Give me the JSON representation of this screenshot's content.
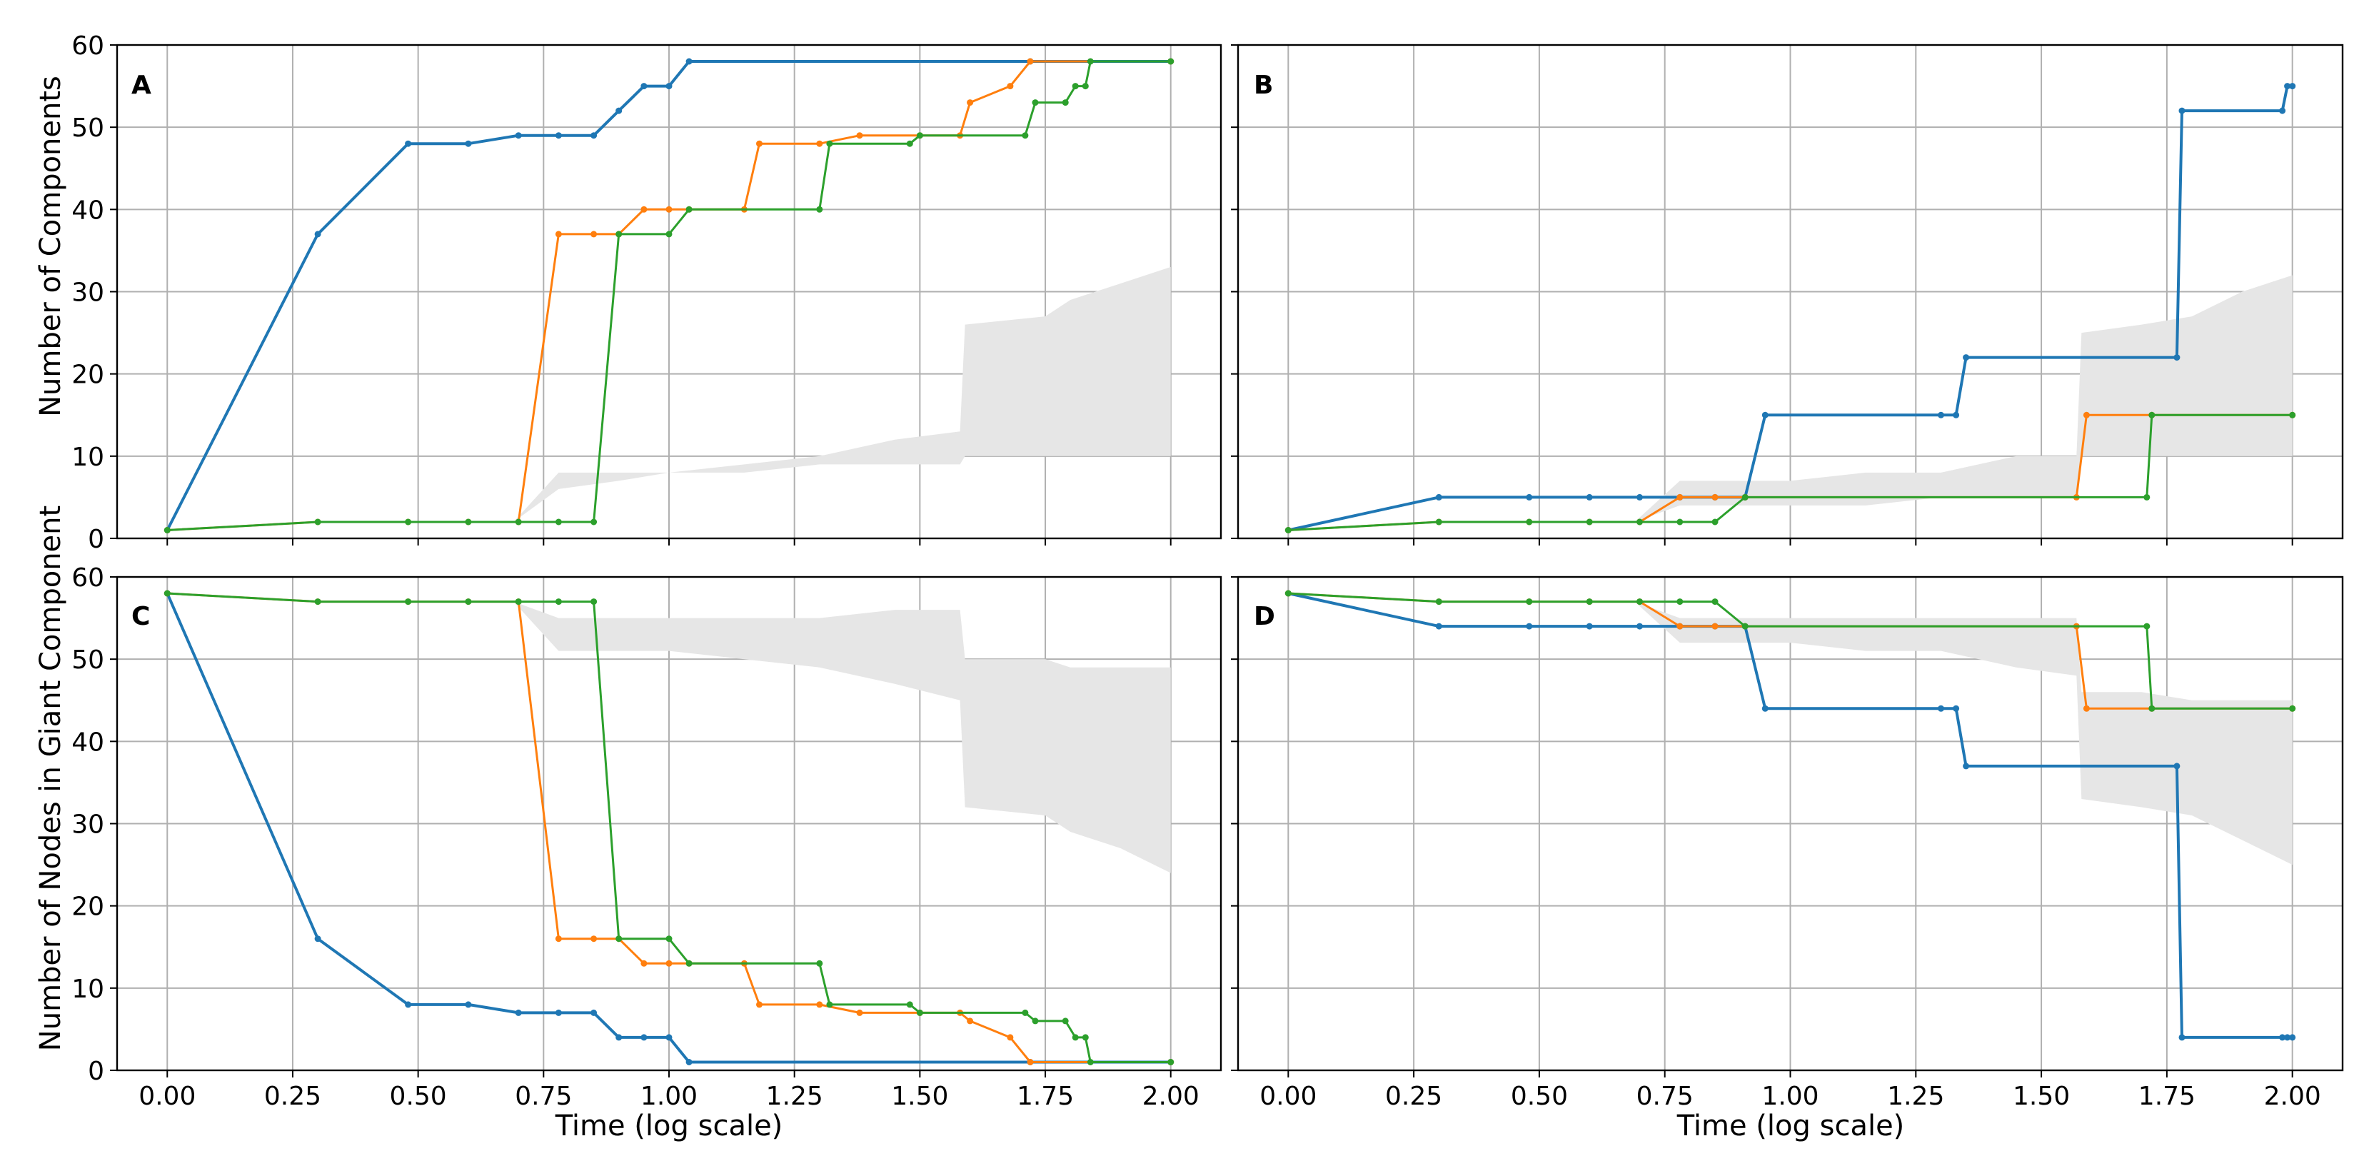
{
  "chart_data": [
    {
      "type": "line",
      "panel": "A",
      "xlabel": "",
      "ylabel": "Number of Components",
      "xlim": [
        0,
        2
      ],
      "ylim": [
        0,
        60
      ],
      "xticks": [
        "0.00",
        "0.25",
        "0.50",
        "0.75",
        "1.00",
        "1.25",
        "1.50",
        "1.75",
        "2.00"
      ],
      "yticks": [
        "0",
        "10",
        "20",
        "30",
        "40",
        "50",
        "60"
      ],
      "grid": true,
      "band": {
        "x": [
          0.69,
          0.78,
          0.9,
          1.0,
          1.15,
          1.3,
          1.45,
          1.58,
          1.59,
          1.75,
          1.8,
          1.9,
          2.0
        ],
        "lower": [
          2,
          6,
          7,
          8,
          8,
          9,
          9,
          9,
          10,
          10,
          10,
          10,
          10
        ],
        "upper": [
          2,
          8,
          8,
          8,
          9,
          10,
          12,
          13,
          26,
          27,
          29,
          31,
          33
        ]
      },
      "series": [
        {
          "color": "#1f77b4",
          "x": [
            0,
            0.3,
            0.48,
            0.6,
            0.7,
            0.78,
            0.85,
            0.9,
            0.95,
            1.0,
            1.04,
            1.72,
            2.0
          ],
          "y": [
            1,
            37,
            48,
            48,
            49,
            49,
            49,
            52,
            55,
            55,
            58,
            58,
            58
          ]
        },
        {
          "color": "#ff7f0e",
          "x": [
            0,
            0.3,
            0.48,
            0.6,
            0.7,
            0.78,
            0.85,
            0.9,
            0.95,
            1.0,
            1.04,
            1.15,
            1.18,
            1.3,
            1.38,
            1.5,
            1.58,
            1.6,
            1.68,
            1.72,
            2.0
          ],
          "y": [
            1,
            2,
            2,
            2,
            2,
            37,
            37,
            37,
            40,
            40,
            40,
            40,
            48,
            48,
            49,
            49,
            49,
            53,
            55,
            58,
            58
          ]
        },
        {
          "color": "#2ca02c",
          "x": [
            0,
            0.3,
            0.48,
            0.6,
            0.7,
            0.78,
            0.85,
            0.9,
            1.0,
            1.04,
            1.3,
            1.32,
            1.48,
            1.5,
            1.71,
            1.73,
            1.79,
            1.81,
            1.83,
            1.84,
            2.0
          ],
          "y": [
            1,
            2,
            2,
            2,
            2,
            2,
            2,
            37,
            37,
            40,
            40,
            48,
            48,
            49,
            49,
            53,
            53,
            55,
            55,
            58,
            58
          ]
        }
      ]
    },
    {
      "type": "line",
      "panel": "B",
      "xlabel": "",
      "ylabel": "",
      "xlim": [
        0,
        2
      ],
      "ylim": [
        0,
        60
      ],
      "xticks": [
        "0.00",
        "0.25",
        "0.50",
        "0.75",
        "1.00",
        "1.25",
        "1.50",
        "1.75",
        "2.00"
      ],
      "yticks": [
        "0",
        "10",
        "20",
        "30",
        "40",
        "50",
        "60"
      ],
      "grid": true,
      "band": {
        "x": [
          0.69,
          0.78,
          0.9,
          1.0,
          1.15,
          1.3,
          1.45,
          1.57,
          1.58,
          1.7,
          1.8,
          1.9,
          2.0
        ],
        "lower": [
          2,
          4,
          4,
          4,
          4,
          5,
          5,
          5,
          10,
          10,
          10,
          10,
          10
        ],
        "upper": [
          2,
          7,
          7,
          7,
          8,
          8,
          10,
          10,
          25,
          26,
          27,
          30,
          32
        ]
      },
      "series": [
        {
          "color": "#1f77b4",
          "x": [
            0,
            0.3,
            0.48,
            0.6,
            0.7,
            0.78,
            0.85,
            0.91,
            0.95,
            1.3,
            1.33,
            1.35,
            1.77,
            1.78,
            1.98,
            1.99,
            2.0
          ],
          "y": [
            1,
            5,
            5,
            5,
            5,
            5,
            5,
            5,
            15,
            15,
            15,
            22,
            22,
            52,
            52,
            55,
            55
          ]
        },
        {
          "color": "#ff7f0e",
          "x": [
            0,
            0.3,
            0.48,
            0.6,
            0.7,
            0.78,
            0.85,
            0.91,
            1.57,
            1.59,
            1.72,
            2.0
          ],
          "y": [
            1,
            2,
            2,
            2,
            2,
            5,
            5,
            5,
            5,
            15,
            15,
            15
          ]
        },
        {
          "color": "#2ca02c",
          "x": [
            0,
            0.3,
            0.48,
            0.6,
            0.7,
            0.78,
            0.85,
            0.91,
            1.71,
            1.72,
            2.0
          ],
          "y": [
            1,
            2,
            2,
            2,
            2,
            2,
            2,
            5,
            5,
            15,
            15
          ]
        }
      ]
    },
    {
      "type": "line",
      "panel": "C",
      "xlabel": "Time (log scale)",
      "ylabel": "Number of Nodes in Giant Component",
      "xlim": [
        0,
        2
      ],
      "ylim": [
        0,
        60
      ],
      "xticks": [
        "0.00",
        "0.25",
        "0.50",
        "0.75",
        "1.00",
        "1.25",
        "1.50",
        "1.75",
        "2.00"
      ],
      "yticks": [
        "0",
        "10",
        "20",
        "30",
        "40",
        "50",
        "60"
      ],
      "grid": true,
      "band": {
        "x": [
          0.69,
          0.78,
          0.9,
          1.0,
          1.15,
          1.3,
          1.45,
          1.58,
          1.59,
          1.75,
          1.8,
          1.9,
          2.0
        ],
        "lower": [
          57,
          51,
          51,
          51,
          50,
          49,
          47,
          45,
          32,
          31,
          29,
          27,
          24
        ],
        "upper": [
          57,
          55,
          55,
          55,
          55,
          55,
          56,
          56,
          50,
          50,
          49,
          49,
          49
        ]
      },
      "series": [
        {
          "color": "#1f77b4",
          "x": [
            0,
            0.3,
            0.48,
            0.6,
            0.7,
            0.78,
            0.85,
            0.9,
            0.95,
            1.0,
            1.04,
            1.72,
            2.0
          ],
          "y": [
            58,
            16,
            8,
            8,
            7,
            7,
            7,
            4,
            4,
            4,
            1,
            1,
            1
          ]
        },
        {
          "color": "#ff7f0e",
          "x": [
            0,
            0.3,
            0.48,
            0.6,
            0.7,
            0.78,
            0.85,
            0.9,
            0.95,
            1.0,
            1.04,
            1.15,
            1.18,
            1.3,
            1.38,
            1.5,
            1.58,
            1.6,
            1.68,
            1.72,
            2.0
          ],
          "y": [
            58,
            57,
            57,
            57,
            57,
            16,
            16,
            16,
            13,
            13,
            13,
            13,
            8,
            8,
            7,
            7,
            7,
            6,
            4,
            1,
            1
          ]
        },
        {
          "color": "#2ca02c",
          "x": [
            0,
            0.3,
            0.48,
            0.6,
            0.7,
            0.78,
            0.85,
            0.9,
            1.0,
            1.04,
            1.3,
            1.32,
            1.48,
            1.5,
            1.71,
            1.73,
            1.79,
            1.81,
            1.83,
            1.84,
            2.0
          ],
          "y": [
            58,
            57,
            57,
            57,
            57,
            57,
            57,
            16,
            16,
            13,
            13,
            8,
            8,
            7,
            7,
            6,
            6,
            4,
            4,
            1,
            1
          ]
        }
      ]
    },
    {
      "type": "line",
      "panel": "D",
      "xlabel": "Time (log scale)",
      "ylabel": "",
      "xlim": [
        0,
        2
      ],
      "ylim": [
        0,
        60
      ],
      "xticks": [
        "0.00",
        "0.25",
        "0.50",
        "0.75",
        "1.00",
        "1.25",
        "1.50",
        "1.75",
        "2.00"
      ],
      "yticks": [
        "0",
        "10",
        "20",
        "30",
        "40",
        "50",
        "60"
      ],
      "grid": true,
      "band": {
        "x": [
          0.69,
          0.78,
          0.9,
          1.0,
          1.15,
          1.3,
          1.45,
          1.57,
          1.58,
          1.7,
          1.8,
          1.9,
          2.0
        ],
        "lower": [
          57,
          52,
          52,
          52,
          51,
          51,
          49,
          48,
          33,
          32,
          31,
          28,
          25
        ],
        "upper": [
          57,
          55,
          55,
          55,
          55,
          55,
          55,
          55,
          46,
          46,
          45,
          45,
          45
        ]
      },
      "series": [
        {
          "color": "#1f77b4",
          "x": [
            0,
            0.3,
            0.48,
            0.6,
            0.7,
            0.78,
            0.85,
            0.91,
            0.95,
            1.3,
            1.33,
            1.35,
            1.77,
            1.78,
            1.98,
            1.99,
            2.0
          ],
          "y": [
            58,
            54,
            54,
            54,
            54,
            54,
            54,
            54,
            44,
            44,
            44,
            37,
            37,
            4,
            4,
            4,
            4
          ]
        },
        {
          "color": "#ff7f0e",
          "x": [
            0,
            0.3,
            0.48,
            0.6,
            0.7,
            0.78,
            0.85,
            0.91,
            1.57,
            1.59,
            1.72,
            2.0
          ],
          "y": [
            58,
            57,
            57,
            57,
            57,
            54,
            54,
            54,
            54,
            44,
            44,
            44
          ]
        },
        {
          "color": "#2ca02c",
          "x": [
            0,
            0.3,
            0.48,
            0.6,
            0.7,
            0.78,
            0.85,
            0.91,
            1.71,
            1.72,
            2.0
          ],
          "y": [
            58,
            57,
            57,
            57,
            57,
            57,
            57,
            54,
            54,
            44,
            44
          ]
        }
      ]
    }
  ],
  "style": {
    "band_color": "#e6e6e6",
    "grid_color": "#b0b0b0",
    "frame_color": "#000000"
  }
}
